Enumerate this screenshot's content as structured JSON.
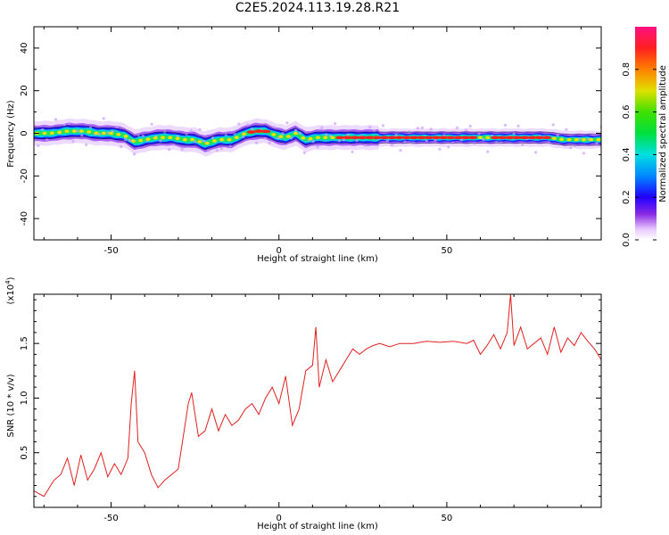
{
  "title": "C2E5.2024.113.19.28.R21",
  "chart_data": [
    {
      "type": "heatmap",
      "xlabel": "Height of straight line (km)",
      "ylabel": "Frequency (Hz)",
      "xlim": [
        -73,
        96
      ],
      "ylim": [
        -50,
        50
      ],
      "xticks": [
        -50,
        0,
        50
      ],
      "yticks": [
        40,
        20,
        0,
        -20,
        -40
      ],
      "grid": false,
      "ridge": {
        "x": [
          -73,
          -68,
          -63,
          -58,
          -54,
          -50,
          -46,
          -43,
          -40,
          -36,
          -32,
          -28,
          -25,
          -22,
          -18,
          -14,
          -10,
          -7,
          -4,
          -1,
          2,
          5,
          8,
          11,
          15,
          20,
          30,
          40,
          50,
          56,
          60,
          65,
          70,
          75,
          80,
          85,
          90,
          96
        ],
        "y": [
          0,
          0,
          1,
          1,
          0,
          0,
          -1,
          -4,
          -3,
          -2,
          -2,
          -3,
          -3,
          -5,
          -3,
          -3,
          0,
          1,
          1,
          -1,
          -2,
          0,
          -3,
          -2,
          -2,
          -2,
          -2,
          -2,
          -2,
          -2,
          -2,
          -2,
          -2,
          -2,
          -2,
          -3,
          -3,
          -3
        ]
      },
      "colorbar": {
        "label": "Normalized spectral amplitude",
        "ticks": [
          "0.0",
          "0.2",
          "0.4",
          "0.6",
          "0.8"
        ],
        "range": [
          0,
          1
        ]
      }
    },
    {
      "type": "line",
      "xlabel": "Height of straight line (km)",
      "ylabel": "SNR (10 * v/v)",
      "multiplier": "(x10^4)",
      "xlim": [
        -73,
        96
      ],
      "ylim": [
        0,
        19500
      ],
      "xticks": [
        -50,
        0,
        50
      ],
      "yticks": [
        "0.5",
        "1.0",
        "1.5"
      ],
      "color": "#e02020",
      "series": [
        {
          "x": [
            -73,
            -70,
            -67,
            -65,
            -63,
            -61,
            -59,
            -57,
            -55,
            -53,
            -51,
            -49,
            -47,
            -45,
            -44,
            -43,
            -42,
            -40,
            -38,
            -36,
            -34,
            -32,
            -30,
            -29,
            -27,
            -26,
            -24,
            -22,
            -20,
            -18,
            -16,
            -14,
            -12,
            -10,
            -8,
            -6,
            -4,
            -2,
            0,
            2,
            4,
            6,
            8,
            10,
            11,
            12,
            14,
            16,
            18,
            20,
            22,
            24,
            26,
            28,
            30,
            33,
            36,
            40,
            44,
            48,
            52,
            56,
            58,
            60,
            62,
            64,
            66,
            68,
            69,
            70,
            72,
            74,
            76,
            78,
            80,
            82,
            84,
            86,
            88,
            90,
            92,
            94,
            96
          ],
          "y": [
            1500,
            1000,
            2500,
            3000,
            4500,
            2000,
            4800,
            2500,
            3500,
            5000,
            2800,
            4000,
            3000,
            4500,
            9500,
            12500,
            6000,
            5000,
            3000,
            1800,
            2500,
            3000,
            3500,
            5500,
            9500,
            10500,
            6500,
            7000,
            9000,
            7000,
            8500,
            7500,
            8000,
            9000,
            9500,
            8500,
            10000,
            11000,
            9500,
            12000,
            7500,
            9000,
            12500,
            13000,
            16500,
            11000,
            13500,
            11500,
            12500,
            13500,
            14500,
            14000,
            14500,
            14800,
            15000,
            14700,
            15000,
            15000,
            15200,
            15100,
            15200,
            15000,
            15300,
            14000,
            14800,
            15800,
            14500,
            16000,
            19500,
            14800,
            16500,
            14500,
            15000,
            15500,
            14000,
            16500,
            14200,
            15500,
            14800,
            16000,
            15200,
            14500,
            13500
          ]
        }
      ]
    }
  ]
}
